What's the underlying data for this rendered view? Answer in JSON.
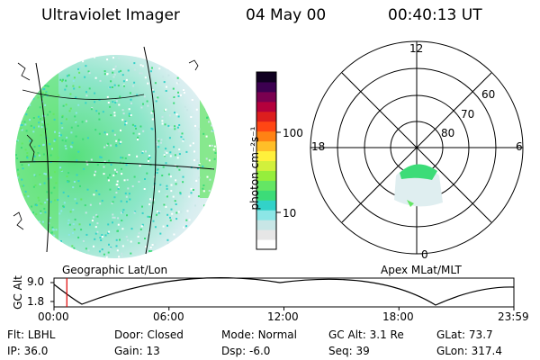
{
  "header": {
    "instrument": "Ultraviolet Imager",
    "date": "04 May 00",
    "time": "00:40:13 UT"
  },
  "colorbar": {
    "unit_label": "photon cm⁻²s⁻¹",
    "ticks": [
      "100",
      "10"
    ],
    "colors": [
      "#ffffff",
      "#e6e6e6",
      "#c8e6e6",
      "#8ce6e6",
      "#32d2c8",
      "#3cdc78",
      "#64e664",
      "#96ee3c",
      "#d2f03c",
      "#fff03c",
      "#ffbe28",
      "#ff8214",
      "#ff4614",
      "#dc1e1e",
      "#b4003c",
      "#7a0050",
      "#3c0050",
      "#100020"
    ]
  },
  "geo_panel": {
    "caption": "Geographic Lat/Lon"
  },
  "polar_panel": {
    "caption": "Apex MLat/MLT",
    "mlt_labels": {
      "top": "12",
      "left": "18",
      "right": "6",
      "bottom": "0"
    },
    "lat_labels": [
      "60",
      "70",
      "80"
    ]
  },
  "orbit_plot": {
    "ylabel": "GC Alt",
    "y_ticks": [
      "9.0",
      "1.8"
    ],
    "x_ticks": [
      "00:00",
      "06:00",
      "12:00",
      "18:00",
      "23:59"
    ],
    "current_time_hours": 0.67,
    "marker_color": "#e00000"
  },
  "status": {
    "row1": [
      {
        "key": "Flt:",
        "value": "LBHL"
      },
      {
        "key": "Door:",
        "value": "Closed"
      },
      {
        "key": "Mode:",
        "value": "Normal"
      },
      {
        "key": "GC Alt:",
        "value": "3.1 Re"
      },
      {
        "key": "GLat:",
        "value": "73.7"
      }
    ],
    "row2": [
      {
        "key": "IP:",
        "value": "36.0"
      },
      {
        "key": "Gain:",
        "value": "13"
      },
      {
        "key": "Dsp:",
        "value": "-6.0"
      },
      {
        "key": "Seq:",
        "value": "39"
      },
      {
        "key": "GLon:",
        "value": "317.4"
      }
    ]
  }
}
